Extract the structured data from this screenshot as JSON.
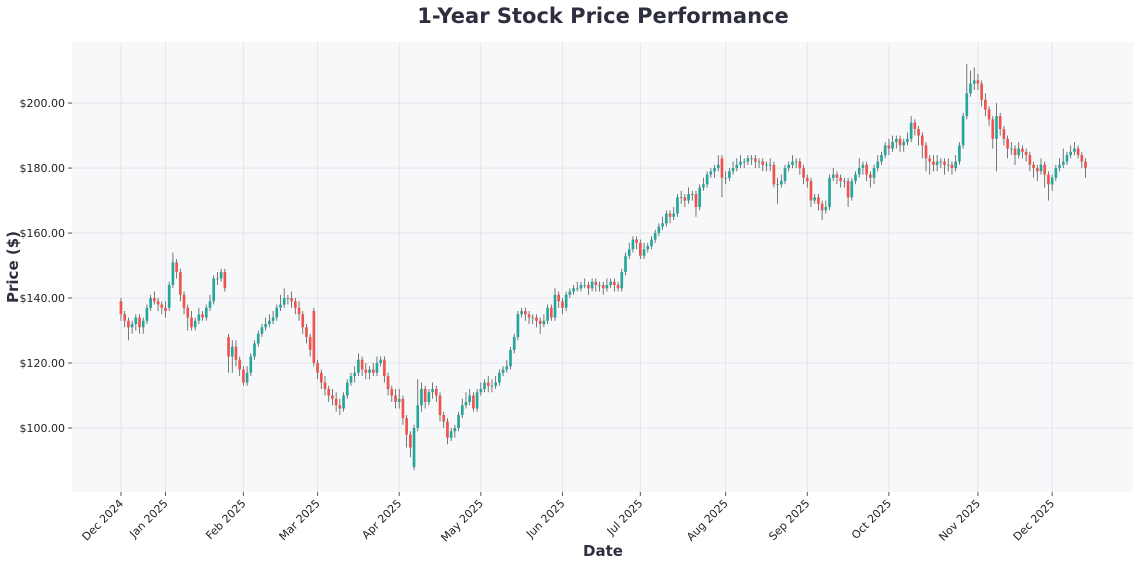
{
  "chart_data": {
    "type": "candlestick",
    "title": "1-Year Stock Price Performance",
    "xlabel": "Date",
    "ylabel": "Price ($)",
    "grid": true,
    "up_color": "#26a69a",
    "down_color": "#ef5350",
    "xlim": [
      -13.2,
      272.8
    ],
    "xticks": [
      {
        "value": 0,
        "label": "Dec 2024"
      },
      {
        "value": 12,
        "label": "Jan 2025"
      },
      {
        "value": 33,
        "label": "Feb 2025"
      },
      {
        "value": 53,
        "label": "Mar 2025"
      },
      {
        "value": 75,
        "label": "Apr 2025"
      },
      {
        "value": 97,
        "label": "May 2025"
      },
      {
        "value": 119,
        "label": "Jun 2025"
      },
      {
        "value": 140,
        "label": "Jul 2025"
      },
      {
        "value": 163,
        "label": "Aug 2025"
      },
      {
        "value": 185,
        "label": "Sep 2025"
      },
      {
        "value": 207,
        "label": "Oct 2025"
      },
      {
        "value": 231,
        "label": "Nov 2025"
      },
      {
        "value": 251,
        "label": "Dec 2025"
      }
    ],
    "ylim": [
      80.3,
      218.8
    ],
    "yticks": [
      {
        "value": 100,
        "label": "$100.00"
      },
      {
        "value": 120,
        "label": "$120.00"
      },
      {
        "value": 140,
        "label": "$140.00"
      },
      {
        "value": 160,
        "label": "$160.00"
      },
      {
        "value": 180,
        "label": "$180.00"
      },
      {
        "value": 200,
        "label": "$200.00"
      }
    ],
    "open": [
      139,
      135,
      133,
      131,
      132,
      134,
      131,
      133,
      137,
      140,
      139,
      138,
      137,
      137,
      144,
      151,
      148,
      141,
      137,
      134,
      131,
      133,
      135,
      134,
      137,
      139,
      146,
      146,
      148,
      128,
      122,
      125,
      121,
      118,
      114,
      117,
      122,
      126,
      129,
      131,
      132,
      133,
      134,
      137,
      138,
      140,
      140,
      139,
      137,
      135,
      131,
      128,
      136,
      120,
      117,
      114,
      112,
      110,
      109,
      107,
      106,
      110,
      114,
      116,
      117,
      121,
      118,
      117,
      118,
      117,
      120,
      121,
      116,
      112,
      110,
      108,
      109,
      103,
      98,
      88,
      100,
      107,
      112,
      108,
      111,
      112,
      110,
      104,
      102,
      97,
      99,
      100,
      104,
      107,
      108,
      110,
      106,
      111,
      112,
      114,
      113,
      113,
      114,
      117,
      118,
      119,
      124,
      128,
      135,
      136,
      135,
      134,
      134,
      133,
      132,
      133,
      137,
      134,
      141,
      139,
      137,
      141,
      142,
      143,
      143,
      144,
      144,
      143,
      145,
      144,
      144,
      143,
      144,
      145,
      144,
      143,
      148,
      153,
      155,
      158,
      157,
      153,
      155,
      156,
      158,
      160,
      162,
      163,
      166,
      165,
      166,
      171,
      171,
      170,
      172,
      172,
      168,
      174,
      175,
      178,
      179,
      180,
      183,
      177,
      177,
      179,
      180,
      181,
      182,
      182,
      183,
      183,
      182,
      182,
      181,
      181,
      181,
      175,
      175,
      176,
      180,
      181,
      182,
      182,
      180,
      177,
      176,
      170,
      171,
      169,
      167,
      168,
      177,
      178,
      177,
      176,
      176,
      171,
      176,
      178,
      180,
      181,
      178,
      177,
      180,
      182,
      184,
      187,
      186,
      188,
      189,
      187,
      188,
      189,
      194,
      192,
      190,
      187,
      183,
      182,
      181,
      182,
      182,
      181,
      181,
      180,
      182,
      187,
      196,
      203,
      206,
      207,
      206,
      201,
      198,
      195,
      189,
      196,
      192,
      189,
      186,
      186,
      184,
      186,
      185,
      184,
      181,
      180,
      179,
      181,
      178,
      175,
      177,
      180,
      181,
      182,
      184,
      185,
      186,
      184,
      182
    ],
    "high": [
      140,
      136,
      134,
      133,
      135,
      135,
      134,
      138,
      141,
      142,
      140,
      139,
      139,
      145,
      154,
      152,
      149,
      142,
      138,
      136,
      134,
      137,
      136,
      138,
      141,
      147,
      148,
      149,
      149,
      129,
      127,
      127,
      122,
      119,
      119,
      123,
      127,
      130,
      132,
      134,
      135,
      136,
      138,
      141,
      143,
      141,
      142,
      140,
      139,
      136,
      132,
      129,
      137,
      121,
      118,
      116,
      113,
      112,
      111,
      109,
      111,
      115,
      117,
      119,
      123,
      122,
      120,
      119,
      120,
      122,
      122,
      122,
      117,
      113,
      112,
      112,
      110,
      104,
      99,
      101,
      115,
      114,
      113,
      112,
      114,
      113,
      111,
      105,
      103,
      100,
      101,
      105,
      109,
      111,
      112,
      111,
      112,
      114,
      115,
      116,
      115,
      116,
      118,
      119,
      121,
      125,
      129,
      136,
      137,
      137,
      136,
      135,
      135,
      134,
      135,
      138,
      138,
      143,
      142,
      140,
      142,
      143,
      144,
      145,
      145,
      146,
      145,
      146,
      146,
      145,
      145,
      146,
      146,
      146,
      145,
      149,
      154,
      157,
      159,
      159,
      158,
      157,
      157,
      159,
      161,
      163,
      165,
      167,
      167,
      168,
      172,
      173,
      172,
      174,
      173,
      173,
      175,
      177,
      179,
      180,
      181,
      184,
      184,
      179,
      180,
      182,
      183,
      184,
      183,
      184,
      184,
      184,
      183,
      183,
      182,
      183,
      182,
      177,
      178,
      181,
      182,
      184,
      183,
      183,
      181,
      178,
      177,
      172,
      172,
      170,
      170,
      178,
      180,
      179,
      178,
      177,
      177,
      177,
      179,
      183,
      182,
      182,
      179,
      181,
      184,
      185,
      188,
      189,
      190,
      190,
      190,
      189,
      191,
      196,
      195,
      193,
      191,
      188,
      184,
      184,
      184,
      183,
      183,
      183,
      182,
      184,
      188,
      197,
      212,
      210,
      211,
      209,
      207,
      203,
      199,
      196,
      200,
      197,
      193,
      190,
      188,
      187,
      188,
      187,
      186,
      185,
      182,
      181,
      183,
      182,
      179,
      178,
      181,
      183,
      186,
      185,
      187,
      188,
      187,
      185,
      183
    ],
    "low": [
      133,
      131,
      127,
      129,
      130,
      129,
      129,
      132,
      136,
      138,
      136,
      135,
      134,
      136,
      143,
      146,
      139,
      135,
      130,
      130,
      130,
      132,
      133,
      133,
      136,
      138,
      144,
      145,
      142,
      117,
      117,
      119,
      116,
      113,
      113,
      116,
      121,
      125,
      128,
      130,
      131,
      132,
      133,
      136,
      137,
      138,
      137,
      135,
      133,
      129,
      126,
      122,
      119,
      115,
      112,
      110,
      108,
      107,
      105,
      104,
      105,
      109,
      113,
      114,
      116,
      116,
      115,
      115,
      116,
      116,
      119,
      114,
      110,
      108,
      106,
      106,
      101,
      94,
      91,
      87,
      99,
      105,
      106,
      107,
      109,
      108,
      102,
      100,
      95,
      96,
      97,
      99,
      103,
      106,
      107,
      105,
      105,
      110,
      111,
      111,
      111,
      112,
      113,
      116,
      117,
      118,
      123,
      127,
      134,
      133,
      132,
      132,
      131,
      129,
      131,
      132,
      133,
      133,
      137,
      135,
      136,
      140,
      141,
      142,
      142,
      143,
      141,
      142,
      142,
      142,
      141,
      142,
      143,
      142,
      142,
      142,
      147,
      152,
      154,
      155,
      152,
      152,
      154,
      155,
      157,
      159,
      161,
      162,
      163,
      164,
      165,
      169,
      168,
      169,
      170,
      165,
      167,
      173,
      174,
      177,
      177,
      179,
      171,
      175,
      176,
      178,
      179,
      180,
      180,
      181,
      181,
      180,
      180,
      179,
      179,
      179,
      174,
      169,
      174,
      175,
      179,
      180,
      180,
      178,
      175,
      174,
      168,
      169,
      167,
      164,
      166,
      167,
      176,
      175,
      174,
      174,
      168,
      170,
      175,
      177,
      178,
      176,
      174,
      175,
      179,
      181,
      183,
      184,
      185,
      186,
      185,
      185,
      187,
      188,
      190,
      187,
      183,
      179,
      178,
      179,
      179,
      180,
      178,
      179,
      178,
      179,
      181,
      186,
      195,
      202,
      204,
      204,
      199,
      196,
      193,
      186,
      179,
      190,
      187,
      183,
      184,
      181,
      183,
      183,
      182,
      179,
      177,
      176,
      178,
      174,
      170,
      173,
      176,
      179,
      180,
      181,
      183,
      184,
      183,
      180,
      177
    ],
    "close": [
      135,
      133,
      131,
      132,
      134,
      131,
      133,
      137,
      140,
      139,
      138,
      137,
      136,
      144,
      151,
      148,
      141,
      137,
      134,
      131,
      133,
      135,
      134,
      137,
      139,
      146,
      146,
      148,
      143,
      122,
      125,
      121,
      118,
      114,
      117,
      122,
      126,
      129,
      131,
      132,
      133,
      134,
      137,
      138,
      140,
      140,
      139,
      137,
      135,
      131,
      128,
      124,
      120,
      117,
      114,
      112,
      110,
      109,
      107,
      106,
      110,
      114,
      116,
      117,
      121,
      118,
      117,
      118,
      117,
      120,
      121,
      116,
      112,
      110,
      108,
      109,
      103,
      98,
      94,
      100,
      107,
      112,
      108,
      111,
      112,
      110,
      104,
      102,
      97,
      99,
      100,
      104,
      107,
      108,
      110,
      106,
      111,
      112,
      114,
      113,
      113,
      114,
      117,
      118,
      119,
      124,
      128,
      135,
      136,
      135,
      134,
      134,
      133,
      132,
      133,
      137,
      134,
      141,
      139,
      137,
      141,
      142,
      143,
      143,
      144,
      144,
      143,
      145,
      144,
      144,
      143,
      144,
      145,
      144,
      143,
      148,
      153,
      155,
      158,
      157,
      153,
      155,
      156,
      158,
      160,
      162,
      163,
      166,
      165,
      166,
      171,
      171,
      170,
      172,
      172,
      168,
      174,
      175,
      178,
      179,
      180,
      181,
      177,
      177,
      179,
      180,
      181,
      182,
      182,
      183,
      183,
      182,
      182,
      181,
      181,
      181,
      175,
      175,
      176,
      180,
      181,
      182,
      182,
      180,
      177,
      176,
      170,
      171,
      169,
      167,
      168,
      177,
      178,
      177,
      176,
      176,
      171,
      176,
      178,
      180,
      181,
      178,
      177,
      180,
      182,
      184,
      187,
      186,
      188,
      189,
      187,
      188,
      189,
      194,
      192,
      190,
      187,
      183,
      182,
      181,
      182,
      182,
      181,
      181,
      180,
      182,
      187,
      196,
      203,
      206,
      207,
      206,
      201,
      198,
      195,
      189,
      196,
      192,
      189,
      186,
      186,
      184,
      186,
      185,
      184,
      181,
      180,
      179,
      181,
      178,
      175,
      177,
      180,
      181,
      182,
      184,
      185,
      186,
      184,
      182,
      180
    ]
  }
}
